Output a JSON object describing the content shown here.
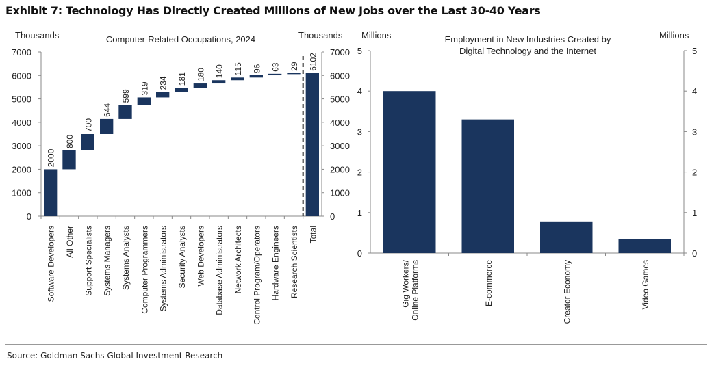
{
  "title": "Exhibit 7: Technology Has Directly Created Millions of New Jobs over the Last 30-40 Years",
  "source": "Source: Goldman Sachs Global Investment Research",
  "colors": {
    "bar": "#1a355e",
    "axis": "#888888"
  },
  "chart_data": [
    {
      "type": "bar",
      "subtype": "waterfall",
      "title": "Computer-Related  Occupations, 2024",
      "ylabel_left": "Thousands",
      "ylabel_right": "Thousands",
      "ylim": [
        0,
        7000
      ],
      "yticks": [
        "0",
        "1000",
        "2000",
        "3000",
        "4000",
        "5000",
        "6000",
        "7000"
      ],
      "categories": [
        "Software Developers",
        "All Other",
        "Support Specialists",
        "Systems Managers",
        "Systems Analysts",
        "Computer Programmers",
        "Systems Administrators",
        "Security Analysts",
        "Web Developers",
        "Database Administrators",
        "Network Architects",
        "Control Program/Operators",
        "Hardware Engineers",
        "Research Scientists",
        "Total"
      ],
      "values": [
        2000,
        800,
        700,
        644,
        599,
        319,
        234,
        181,
        180,
        140,
        115,
        96,
        63,
        29,
        6102
      ],
      "labels": [
        "2000",
        "800",
        "700",
        "644",
        "599",
        "319",
        "234",
        "181",
        "180",
        "140",
        "115",
        "96",
        "63",
        "29",
        "6102"
      ]
    },
    {
      "type": "bar",
      "title": "Employment in New Industries Created by Digital Technology and the Internet",
      "title_lines": [
        "Employment in New Industries Created by",
        "Digital Technology and the Internet"
      ],
      "ylabel_left": "Millions",
      "ylabel_right": "Millions",
      "ylim": [
        0,
        5
      ],
      "yticks": [
        "0",
        "1",
        "2",
        "3",
        "4",
        "5"
      ],
      "categories": [
        [
          "Gig Workers/",
          "Online Platforms"
        ],
        [
          "E-commerce"
        ],
        [
          "Creator Economy"
        ],
        [
          "Video Games"
        ]
      ],
      "values": [
        4.0,
        3.3,
        0.78,
        0.35
      ]
    }
  ]
}
